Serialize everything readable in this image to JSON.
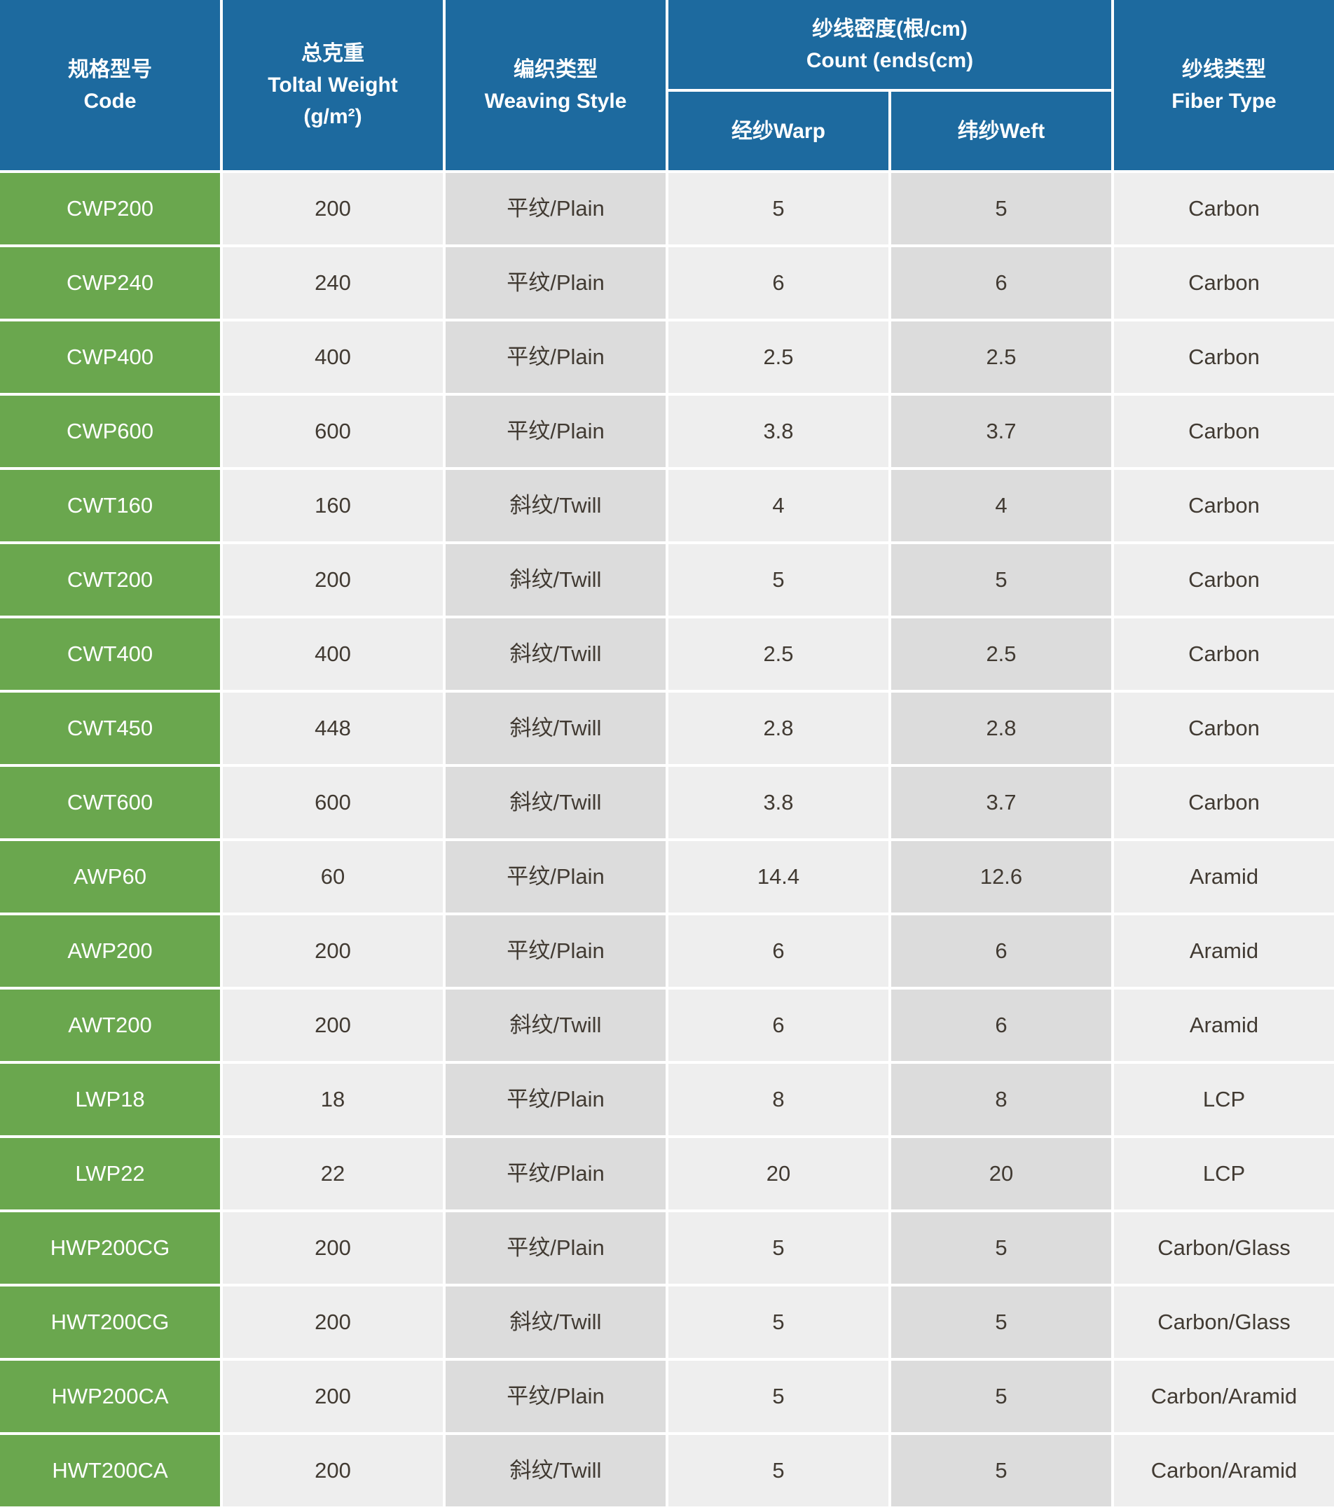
{
  "table": {
    "header": {
      "code": {
        "zh": "规格型号",
        "en": "Code"
      },
      "weight": {
        "zh": "总克重",
        "en": "Toltal Weight",
        "unit": "(g/m²)"
      },
      "weaving": {
        "zh": "编织类型",
        "en": "Weaving Style"
      },
      "count": {
        "zh": "纱线密度(根/cm)",
        "en": "Count (ends(cm)"
      },
      "warp": {
        "label": "经纱Warp"
      },
      "weft": {
        "label": "纬纱Weft"
      },
      "fiber": {
        "zh": "纱线类型",
        "en": "Fiber Type"
      }
    },
    "rows": [
      {
        "code": "CWP200",
        "weight": "200",
        "weaving": "平纹/Plain",
        "warp": "5",
        "weft": "5",
        "fiber": "Carbon"
      },
      {
        "code": "CWP240",
        "weight": "240",
        "weaving": "平纹/Plain",
        "warp": "6",
        "weft": "6",
        "fiber": "Carbon"
      },
      {
        "code": "CWP400",
        "weight": "400",
        "weaving": "平纹/Plain",
        "warp": "2.5",
        "weft": "2.5",
        "fiber": "Carbon"
      },
      {
        "code": "CWP600",
        "weight": "600",
        "weaving": "平纹/Plain",
        "warp": "3.8",
        "weft": "3.7",
        "fiber": "Carbon"
      },
      {
        "code": "CWT160",
        "weight": "160",
        "weaving": "斜纹/Twill",
        "warp": "4",
        "weft": "4",
        "fiber": "Carbon"
      },
      {
        "code": "CWT200",
        "weight": "200",
        "weaving": "斜纹/Twill",
        "warp": "5",
        "weft": "5",
        "fiber": "Carbon"
      },
      {
        "code": "CWT400",
        "weight": "400",
        "weaving": "斜纹/Twill",
        "warp": "2.5",
        "weft": "2.5",
        "fiber": "Carbon"
      },
      {
        "code": "CWT450",
        "weight": "448",
        "weaving": "斜纹/Twill",
        "warp": "2.8",
        "weft": "2.8",
        "fiber": "Carbon"
      },
      {
        "code": "CWT600",
        "weight": "600",
        "weaving": "斜纹/Twill",
        "warp": "3.8",
        "weft": "3.7",
        "fiber": "Carbon"
      },
      {
        "code": "AWP60",
        "weight": "60",
        "weaving": "平纹/Plain",
        "warp": "14.4",
        "weft": "12.6",
        "fiber": "Aramid"
      },
      {
        "code": "AWP200",
        "weight": "200",
        "weaving": "平纹/Plain",
        "warp": "6",
        "weft": "6",
        "fiber": "Aramid"
      },
      {
        "code": "AWT200",
        "weight": "200",
        "weaving": "斜纹/Twill",
        "warp": "6",
        "weft": "6",
        "fiber": "Aramid"
      },
      {
        "code": "LWP18",
        "weight": "18",
        "weaving": "平纹/Plain",
        "warp": "8",
        "weft": "8",
        "fiber": "LCP"
      },
      {
        "code": "LWP22",
        "weight": "22",
        "weaving": "平纹/Plain",
        "warp": "20",
        "weft": "20",
        "fiber": "LCP"
      },
      {
        "code": "HWP200CG",
        "weight": "200",
        "weaving": "平纹/Plain",
        "warp": "5",
        "weft": "5",
        "fiber": "Carbon/Glass"
      },
      {
        "code": "HWT200CG",
        "weight": "200",
        "weaving": "斜纹/Twill",
        "warp": "5",
        "weft": "5",
        "fiber": "Carbon/Glass"
      },
      {
        "code": "HWP200CA",
        "weight": "200",
        "weaving": "平纹/Plain",
        "warp": "5",
        "weft": "5",
        "fiber": "Carbon/Aramid"
      },
      {
        "code": "HWT200CA",
        "weight": "200",
        "weaving": "斜纹/Twill",
        "warp": "5",
        "weft": "5",
        "fiber": "Carbon/Aramid"
      }
    ]
  },
  "colors": {
    "header_blue": "#1d6a9f",
    "code_green": "#6aa74e",
    "column_light_gray": "#eeeeee",
    "column_dark_gray": "#dcdcdc",
    "data_text": "#413a32"
  }
}
